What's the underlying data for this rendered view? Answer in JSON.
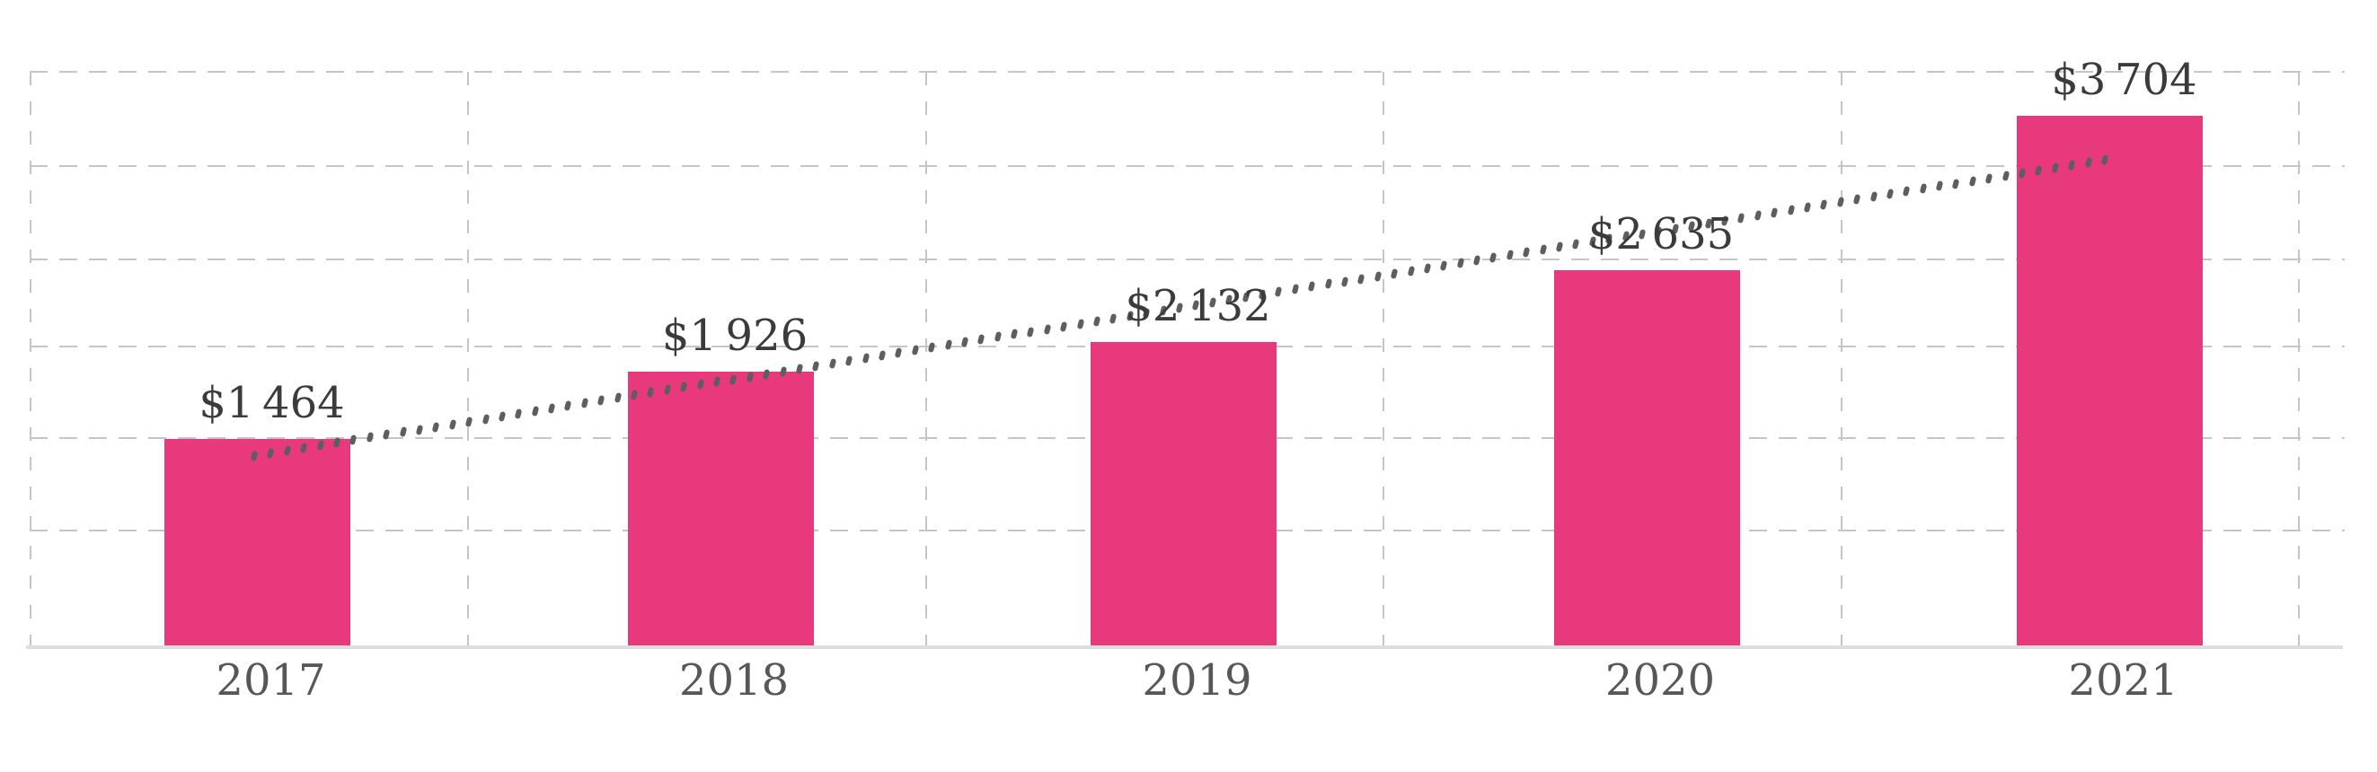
{
  "chart_data": {
    "type": "bar",
    "title": "",
    "xlabel": "",
    "ylabel": "",
    "categories": [
      "2017",
      "2018",
      "2019",
      "2020",
      "2021"
    ],
    "values": [
      1464,
      1926,
      2132,
      2635,
      3704
    ],
    "value_labels": [
      "$1 464",
      "$1 926",
      "$2 132",
      "$2 635",
      "$3 704"
    ],
    "series": [
      {
        "name": "value-usd",
        "type": "bar",
        "values": [
          1464,
          1926,
          2132,
          2635,
          3704
        ]
      },
      {
        "name": "trend-line",
        "type": "dotted-line",
        "points": [
          {
            "category": "2017",
            "approx_value": 1343
          },
          {
            "category": "2021",
            "approx_value": 3400
          }
        ]
      }
    ],
    "ylim": [
      0,
      4300
    ],
    "grid": {
      "horizontal": true,
      "vertical": true,
      "style": "dashed"
    },
    "legend": "none",
    "axis_labels_shown": "x-only",
    "colors": {
      "bar": "#e7397b",
      "value_label": "#3b3b3b",
      "year_label": "#575757",
      "gridline": "#c5c5c5",
      "axis_line": "#dedede",
      "trend_dots": "#5e5e5e",
      "background": "#ffffff"
    }
  }
}
